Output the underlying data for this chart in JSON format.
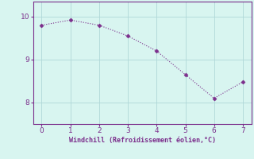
{
  "x": [
    0,
    1,
    2,
    3,
    4,
    5,
    6,
    7
  ],
  "y": [
    9.8,
    9.92,
    9.8,
    9.55,
    9.2,
    8.65,
    8.1,
    8.48
  ],
  "line_color": "#7b2d8b",
  "marker": "D",
  "marker_size": 2.5,
  "background_color": "#d8f5f0",
  "grid_color": "#b0d8d8",
  "xlabel": "Windchill (Refroidissement éolien,°C)",
  "xlabel_color": "#7b2d8b",
  "tick_color": "#7b2d8b",
  "spine_color": "#7b2d8b",
  "xlim": [
    -0.3,
    7.3
  ],
  "ylim": [
    7.5,
    10.35
  ],
  "yticks": [
    8,
    9,
    10
  ],
  "xticks": [
    0,
    1,
    2,
    3,
    4,
    5,
    6,
    7
  ]
}
